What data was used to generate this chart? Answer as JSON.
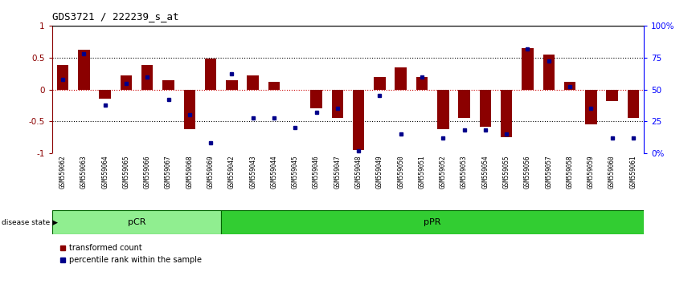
{
  "title": "GDS3721 / 222239_s_at",
  "samples": [
    "GSM559062",
    "GSM559063",
    "GSM559064",
    "GSM559065",
    "GSM559066",
    "GSM559067",
    "GSM559068",
    "GSM559069",
    "GSM559042",
    "GSM559043",
    "GSM559044",
    "GSM559045",
    "GSM559046",
    "GSM559047",
    "GSM559048",
    "GSM559049",
    "GSM559050",
    "GSM559051",
    "GSM559052",
    "GSM559053",
    "GSM559054",
    "GSM559055",
    "GSM559056",
    "GSM559057",
    "GSM559058",
    "GSM559059",
    "GSM559060",
    "GSM559061"
  ],
  "bar_values": [
    0.38,
    0.62,
    -0.15,
    0.22,
    0.38,
    0.15,
    -0.62,
    0.48,
    0.15,
    0.22,
    0.12,
    0.0,
    -0.3,
    -0.45,
    -0.95,
    0.2,
    0.35,
    0.2,
    -0.62,
    -0.45,
    -0.58,
    -0.75,
    0.65,
    0.55,
    0.12,
    -0.55,
    -0.18,
    -0.45
  ],
  "dot_values_pct": [
    58,
    78,
    38,
    55,
    60,
    42,
    30,
    8,
    62,
    28,
    28,
    20,
    32,
    35,
    2,
    45,
    15,
    60,
    12,
    18,
    18,
    15,
    82,
    72,
    52,
    35,
    12,
    12
  ],
  "pcr_count": 8,
  "ppr_count": 20,
  "bar_color": "#8B0000",
  "dot_color": "#00008B",
  "pcr_color": "#90EE90",
  "ppr_color": "#32CD32",
  "zero_line_color": "#CC0000",
  "ylim": [
    -1,
    1
  ],
  "yticks": [
    -1,
    -0.5,
    0,
    0.5,
    1
  ],
  "ytick_labels": [
    "-1",
    "-0.5",
    "0",
    "0.5",
    "1"
  ],
  "right_yticks": [
    0,
    25,
    50,
    75,
    100
  ],
  "right_ytick_labels": [
    "0%",
    "25",
    "50",
    "75",
    "100%"
  ],
  "hline_values": [
    0.5,
    -0.5
  ],
  "background_color": "#ffffff",
  "tick_bg_color": "#C8C8C8"
}
